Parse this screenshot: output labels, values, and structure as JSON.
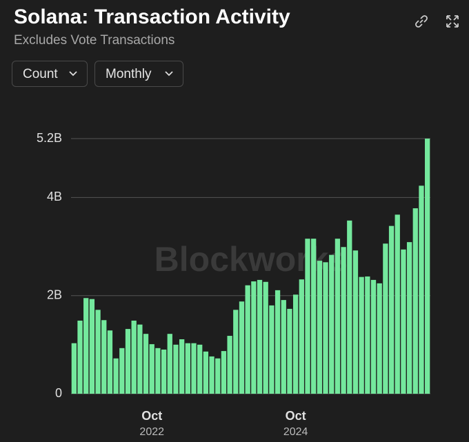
{
  "header": {
    "title": "Solana: Transaction Activity",
    "subtitle": "Excludes Vote Transactions",
    "controls": [
      "Count",
      "Monthly"
    ]
  },
  "chart_data": {
    "type": "bar",
    "watermark": "Blockworks",
    "color": "#74e89d",
    "grid": true,
    "categories": [
      null,
      null,
      null,
      null,
      null,
      null,
      null,
      null,
      null,
      null,
      null,
      null,
      null,
      {
        "month": "Oct",
        "year": "2022"
      },
      null,
      null,
      null,
      null,
      null,
      null,
      null,
      null,
      null,
      null,
      null,
      null,
      null,
      null,
      null,
      null,
      null,
      null,
      null,
      null,
      null,
      null,
      null,
      {
        "month": "Oct",
        "year": "2024"
      },
      null,
      null,
      null,
      null,
      null,
      null,
      null,
      null,
      null,
      null,
      null,
      null,
      null,
      null,
      null,
      null,
      null,
      null,
      null,
      null,
      null,
      null
    ],
    "values": [
      1.03,
      1.49,
      1.95,
      1.93,
      1.71,
      1.5,
      1.29,
      0.72,
      0.93,
      1.32,
      1.49,
      1.41,
      1.22,
      1.01,
      0.93,
      0.9,
      1.22,
      1.0,
      1.11,
      1.03,
      1.03,
      1.0,
      0.86,
      0.76,
      0.72,
      0.87,
      1.18,
      1.71,
      1.88,
      2.21,
      2.29,
      2.32,
      2.28,
      1.8,
      2.11,
      1.91,
      1.73,
      2.02,
      2.33,
      3.16,
      3.16,
      2.71,
      2.68,
      2.83,
      3.16,
      2.99,
      3.53,
      2.92,
      2.38,
      2.39,
      2.32,
      2.25,
      3.06,
      3.42,
      3.65,
      2.94,
      3.09,
      3.78,
      4.24,
      5.2
    ],
    "ylim": [
      0,
      5.2
    ],
    "yticks": [
      0,
      {
        "value": 2,
        "label": "2B"
      },
      {
        "value": 4,
        "label": "4B"
      },
      {
        "value": 5.2,
        "label": "5.2B"
      }
    ]
  }
}
